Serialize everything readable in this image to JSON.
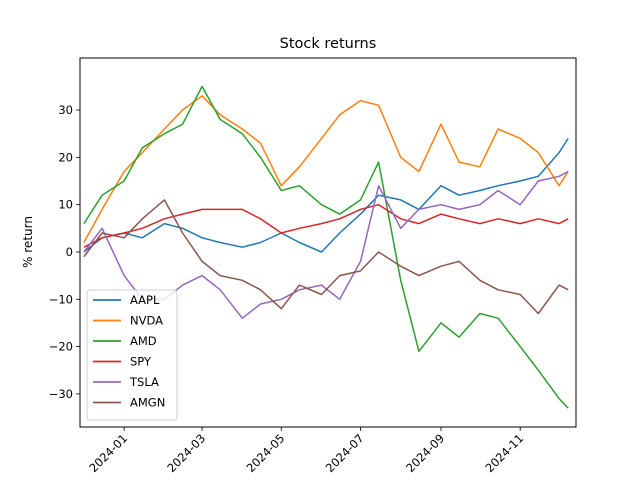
{
  "chart_data": {
    "type": "line",
    "title": "Stock returns",
    "xlabel": "",
    "ylabel": "% return",
    "xlim": [
      "2023-11-28",
      "2024-12-14"
    ],
    "ylim": [
      -37,
      41
    ],
    "x_ticks": [
      "2024-01",
      "2024-03",
      "2024-05",
      "2024-07",
      "2024-09",
      "2024-11"
    ],
    "y_ticks": [
      -30,
      -20,
      -10,
      0,
      10,
      20,
      30
    ],
    "grid": false,
    "legend_position": "lower-left",
    "x": [
      "2023-12-01",
      "2023-12-15",
      "2024-01-01",
      "2024-01-15",
      "2024-02-01",
      "2024-02-15",
      "2024-03-01",
      "2024-03-15",
      "2024-04-01",
      "2024-04-15",
      "2024-05-01",
      "2024-05-15",
      "2024-06-01",
      "2024-06-15",
      "2024-07-01",
      "2024-07-15",
      "2024-08-01",
      "2024-08-15",
      "2024-09-01",
      "2024-09-15",
      "2024-10-01",
      "2024-10-15",
      "2024-11-01",
      "2024-11-15",
      "2024-12-01",
      "2024-12-08"
    ],
    "series": [
      {
        "name": "AAPL",
        "color": "#1f77b4",
        "values": [
          0,
          3,
          4,
          3,
          6,
          5,
          3,
          2,
          1,
          2,
          4,
          2,
          0,
          4,
          8,
          12,
          11,
          9,
          14,
          12,
          13,
          14,
          15,
          16,
          21,
          24
        ]
      },
      {
        "name": "NVDA",
        "color": "#ff7f0e",
        "values": [
          2,
          9,
          17,
          21,
          26,
          30,
          33,
          29,
          26,
          23,
          14,
          18,
          24,
          29,
          32,
          31,
          20,
          17,
          27,
          19,
          18,
          26,
          24,
          21,
          14,
          17
        ]
      },
      {
        "name": "AMD",
        "color": "#2ca02c",
        "values": [
          6,
          12,
          15,
          22,
          25,
          27,
          35,
          28,
          25,
          20,
          13,
          14,
          10,
          8,
          11,
          19,
          -6,
          -21,
          -15,
          -18,
          -13,
          -14,
          -20,
          -25,
          -31,
          -33
        ]
      },
      {
        "name": "SPY",
        "color": "#d62728",
        "values": [
          1,
          3,
          4,
          5,
          7,
          8,
          9,
          9,
          9,
          7,
          4,
          5,
          6,
          7,
          9,
          10,
          7,
          6,
          8,
          7,
          6,
          7,
          6,
          7,
          6,
          7
        ]
      },
      {
        "name": "TSLA",
        "color": "#9467bd",
        "values": [
          0,
          5,
          -5,
          -10,
          -10,
          -7,
          -5,
          -8,
          -14,
          -11,
          -10,
          -8,
          -7,
          -10,
          -2,
          14,
          5,
          9,
          10,
          9,
          10,
          13,
          10,
          15,
          16,
          17
        ]
      },
      {
        "name": "AMGN",
        "color": "#8c564b",
        "values": [
          -1,
          4,
          3,
          7,
          11,
          4,
          -2,
          -5,
          -6,
          -8,
          -12,
          -7,
          -9,
          -5,
          -4,
          0,
          -3,
          -5,
          -3,
          -2,
          -6,
          -8,
          -9,
          -13,
          -7,
          -8
        ]
      }
    ]
  }
}
